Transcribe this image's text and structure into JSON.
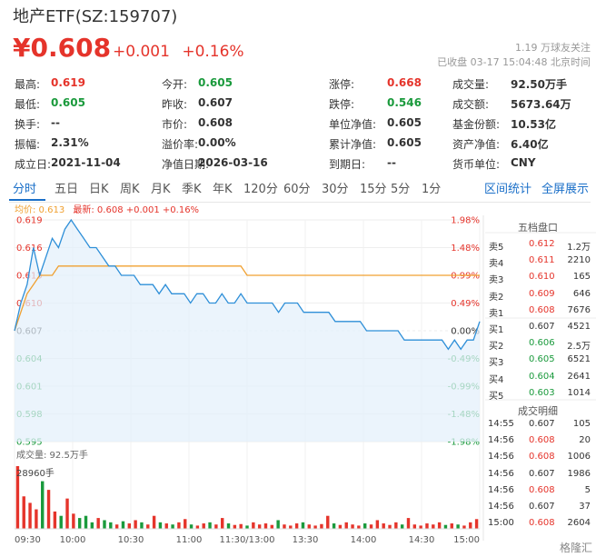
{
  "header": {
    "title": "地产ETF(SZ:159707)",
    "price": "¥0.608",
    "change": "+0.001",
    "change_pct": "+0.16%",
    "followers": "1.19 万球友关注",
    "close_status": "已收盘 03-17 15:04:48 北京时间"
  },
  "stats": [
    {
      "label": "最高:",
      "value": "0.619",
      "color": "red"
    },
    {
      "label": "今开:",
      "value": "0.605",
      "color": "green"
    },
    {
      "label": "涨停:",
      "value": "0.668",
      "color": "red"
    },
    {
      "label": "成交量:",
      "value": "92.50万手",
      "color": "none"
    },
    {
      "label": "最低:",
      "value": "0.605",
      "color": "green"
    },
    {
      "label": "昨收:",
      "value": "0.607",
      "color": "none"
    },
    {
      "label": "跌停:",
      "value": "0.546",
      "color": "green"
    },
    {
      "label": "成交额:",
      "value": "5673.64万",
      "color": "none"
    },
    {
      "label": "换手:",
      "value": "--",
      "color": "none"
    },
    {
      "label": "市价:",
      "value": "0.608",
      "color": "none"
    },
    {
      "label": "单位净值:",
      "value": "0.605",
      "color": "none"
    },
    {
      "label": "基金份额:",
      "value": "10.53亿",
      "color": "none"
    },
    {
      "label": "振幅:",
      "value": "2.31%",
      "color": "none"
    },
    {
      "label": "溢价率:",
      "value": "0.00%",
      "color": "none"
    },
    {
      "label": "累计净值:",
      "value": "0.605",
      "color": "none"
    },
    {
      "label": "资产净值:",
      "value": "6.40亿",
      "color": "none"
    },
    {
      "label": "成立日:",
      "value": "2021-11-04",
      "color": "none"
    },
    {
      "label": "净值日期:",
      "value": "2026-03-16",
      "color": "none"
    },
    {
      "label": "到期日:",
      "value": "--",
      "color": "none"
    },
    {
      "label": "货币单位:",
      "value": "CNY",
      "color": "none"
    }
  ],
  "tabs": [
    "分时",
    "五日",
    "日K",
    "周K",
    "月K",
    "季K",
    "年K",
    "120分",
    "60分",
    "30分",
    "15分",
    "5分",
    "1分"
  ],
  "active_tab": "分时",
  "links": {
    "interval_stats": "区间统计",
    "fullscreen": "全屏展示"
  },
  "legend": {
    "avg": "均价: 0.613",
    "latest": "最新: 0.608 +0.001 +0.16%"
  },
  "chart_data": {
    "type": "line",
    "prev_close": 0.607,
    "y_range": [
      0.595,
      0.619
    ],
    "y_ticks_left": [
      "0.619",
      "0.616",
      "0.613",
      "0.610",
      "0.607",
      "0.604",
      "0.601",
      "0.598",
      "0.595"
    ],
    "y_ticks_right": [
      "1.98%",
      "1.48%",
      "0.99%",
      "0.49%",
      "0.00%",
      "-0.49%",
      "-0.99%",
      "-1.48%",
      "-1.98%"
    ],
    "x_ticks": [
      "09:30",
      "10:00",
      "10:30",
      "11:00",
      "11:30/13:00",
      "13:30",
      "14:00",
      "14:30",
      "15:00"
    ],
    "series": [
      {
        "name": "最新",
        "color": "#2e8fd8",
        "values": [
          0.607,
          0.61,
          0.612,
          0.616,
          0.613,
          0.615,
          0.617,
          0.616,
          0.618,
          0.619,
          0.618,
          0.617,
          0.616,
          0.616,
          0.615,
          0.614,
          0.614,
          0.613,
          0.613,
          0.613,
          0.612,
          0.612,
          0.612,
          0.611,
          0.612,
          0.611,
          0.611,
          0.611,
          0.61,
          0.611,
          0.611,
          0.61,
          0.61,
          0.611,
          0.61,
          0.61,
          0.611,
          0.61,
          0.61,
          0.61,
          0.61,
          0.61,
          0.609,
          0.61,
          0.61,
          0.61,
          0.609,
          0.609,
          0.609,
          0.609,
          0.609,
          0.608,
          0.608,
          0.608,
          0.608,
          0.608,
          0.607,
          0.607,
          0.607,
          0.607,
          0.607,
          0.607,
          0.606,
          0.606,
          0.606,
          0.606,
          0.606,
          0.606,
          0.606,
          0.605,
          0.606,
          0.605,
          0.606,
          0.606,
          0.608
        ]
      },
      {
        "name": "均价",
        "color": "#f0a030",
        "values": [
          0.607,
          0.609,
          0.611,
          0.612,
          0.613,
          0.613,
          0.613,
          0.614,
          0.614,
          0.614,
          0.614,
          0.614,
          0.614,
          0.614,
          0.614,
          0.614,
          0.614,
          0.614,
          0.614,
          0.614,
          0.614,
          0.614,
          0.614,
          0.614,
          0.614,
          0.614,
          0.614,
          0.614,
          0.614,
          0.614,
          0.614,
          0.614,
          0.614,
          0.614,
          0.614,
          0.614,
          0.614,
          0.613,
          0.613,
          0.613,
          0.613,
          0.613,
          0.613,
          0.613,
          0.613,
          0.613,
          0.613,
          0.613,
          0.613,
          0.613,
          0.613,
          0.613,
          0.613,
          0.613,
          0.613,
          0.613,
          0.613,
          0.613,
          0.613,
          0.613,
          0.613,
          0.613,
          0.613,
          0.613,
          0.613,
          0.613,
          0.613,
          0.613,
          0.613,
          0.613,
          0.613,
          0.613,
          0.613,
          0.613,
          0.613
        ]
      }
    ],
    "volume_label": "成交量: 92.5万手",
    "volume_max_label": "28960手",
    "volume_max": 28960,
    "volume": [
      28960,
      15000,
      12000,
      9000,
      22000,
      18000,
      8000,
      6000,
      14000,
      7000,
      5000,
      6000,
      3000,
      5000,
      4000,
      3000,
      2000,
      3500,
      2500,
      4000,
      3000,
      2000,
      6000,
      3000,
      2500,
      2000,
      3000,
      4500,
      2000,
      1500,
      2500,
      3000,
      2000,
      5000,
      2500,
      1800,
      2200,
      1500,
      3000,
      2000,
      2500,
      1800,
      4000,
      2000,
      1500,
      2500,
      3000,
      2000,
      1500,
      2200,
      6000,
      2500,
      1800,
      3000,
      2000,
      1500,
      2500,
      2000,
      4000,
      2500,
      1800,
      3000,
      2000,
      5000,
      2000,
      1500,
      2500,
      2000,
      3000,
      1800,
      2500,
      2000,
      1500,
      3000,
      4500
    ]
  },
  "orderbook": {
    "title": "五档盘口",
    "rows": [
      {
        "label": "卖5",
        "price": "0.612",
        "vol": "1.2万",
        "pc": "red"
      },
      {
        "label": "卖4",
        "price": "0.611",
        "vol": "2210",
        "pc": "red"
      },
      {
        "label": "卖3",
        "price": "0.610",
        "vol": "165",
        "pc": "red"
      },
      {
        "label": "卖2",
        "price": "0.609",
        "vol": "646",
        "pc": "red"
      },
      {
        "label": "卖1",
        "price": "0.608",
        "vol": "7676",
        "pc": "red"
      },
      {
        "label": "买1",
        "price": "0.607",
        "vol": "4521",
        "pc": "none"
      },
      {
        "label": "买2",
        "price": "0.606",
        "vol": "2.5万",
        "pc": "green"
      },
      {
        "label": "买3",
        "price": "0.605",
        "vol": "6521",
        "pc": "green"
      },
      {
        "label": "买4",
        "price": "0.604",
        "vol": "2641",
        "pc": "green"
      },
      {
        "label": "买5",
        "price": "0.603",
        "vol": "1014",
        "pc": "green"
      }
    ]
  },
  "trades": {
    "title": "成交明细",
    "rows": [
      {
        "time": "14:55",
        "price": "0.607",
        "vol": "105",
        "pc": "none"
      },
      {
        "time": "14:56",
        "price": "0.608",
        "vol": "20",
        "pc": "red"
      },
      {
        "time": "14:56",
        "price": "0.608",
        "vol": "1006",
        "pc": "red"
      },
      {
        "time": "14:56",
        "price": "0.607",
        "vol": "1986",
        "pc": "none"
      },
      {
        "time": "14:56",
        "price": "0.608",
        "vol": "5",
        "pc": "red"
      },
      {
        "time": "14:56",
        "price": "0.607",
        "vol": "37",
        "pc": "none"
      },
      {
        "time": "15:00",
        "price": "0.608",
        "vol": "2604",
        "pc": "red"
      }
    ]
  },
  "watermark": "格隆汇"
}
